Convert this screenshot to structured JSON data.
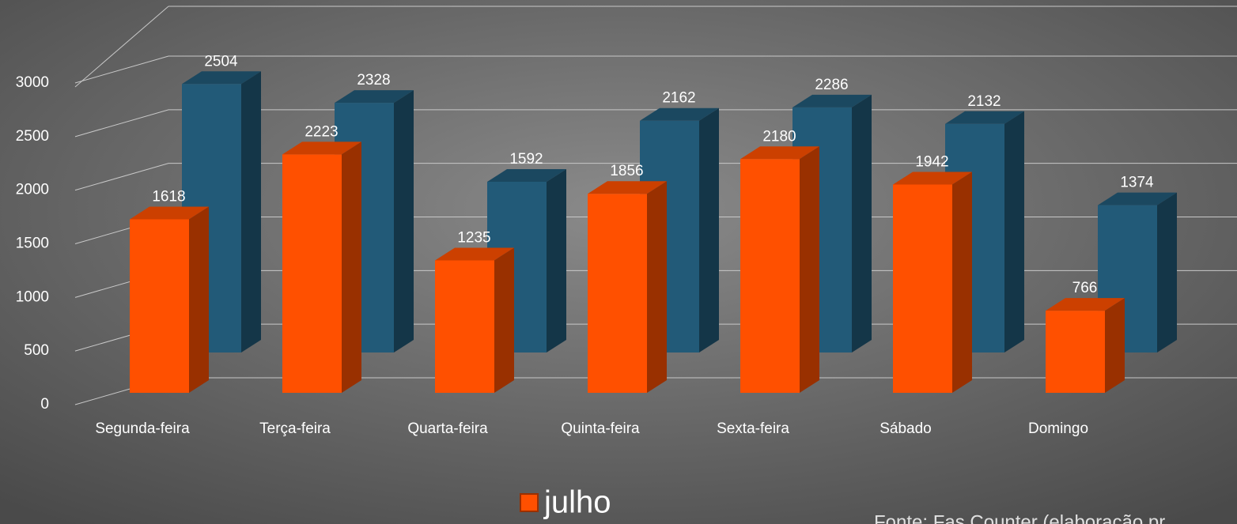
{
  "chart_data": {
    "type": "bar3d",
    "categories": [
      "Segunda-feira",
      "Terça-feira",
      "Quarta-feira",
      "Quinta-feira",
      "Sexta-feira",
      "Sábado",
      "Domingo"
    ],
    "series": [
      {
        "name": "julho",
        "color": "#ff5000",
        "values": [
          1618,
          2223,
          1235,
          1856,
          2180,
          1942,
          766
        ]
      },
      {
        "color": "#225a78",
        "values": [
          2504,
          2328,
          1592,
          2162,
          2286,
          2132,
          1374
        ]
      }
    ],
    "ylim": [
      0,
      3000
    ],
    "yticks": [
      0,
      500,
      1000,
      1500,
      2000,
      2500,
      3000
    ],
    "grid": true,
    "source": "Fonte: Fas Counter (elaboração pr"
  }
}
